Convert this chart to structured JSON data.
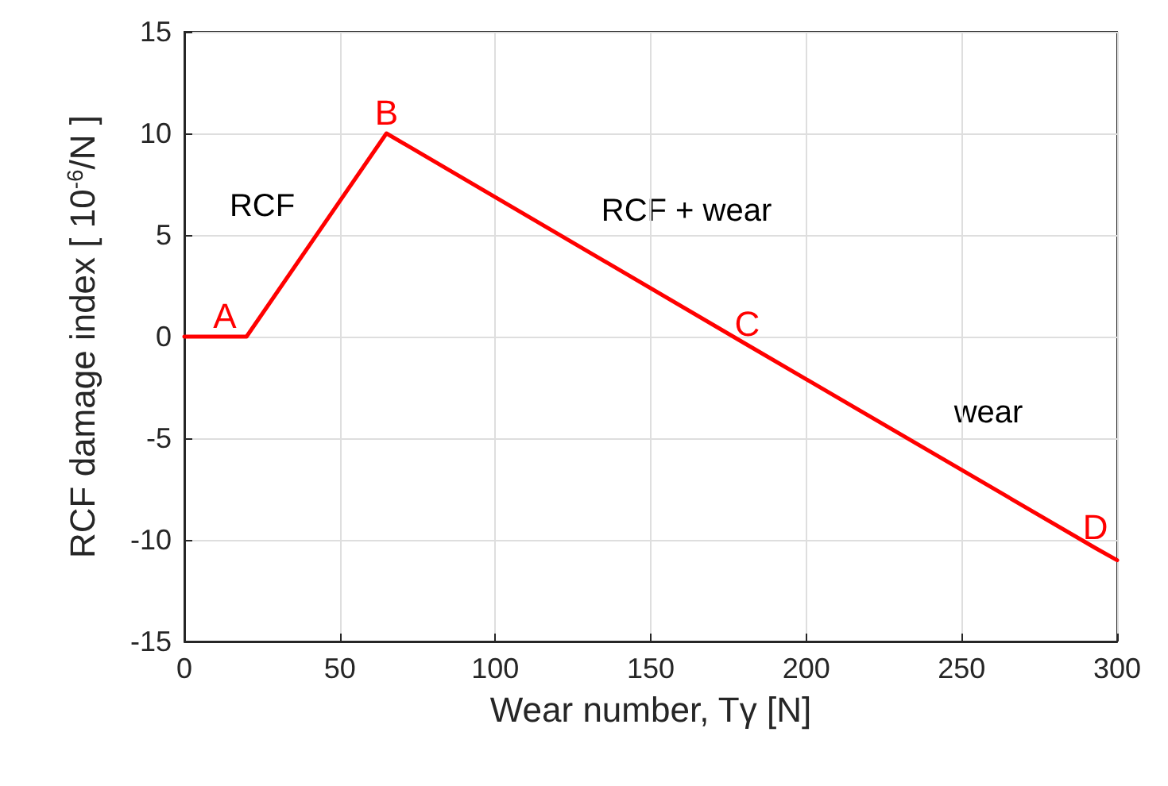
{
  "chart_data": {
    "type": "line",
    "xlabel": "Wear number, Tγ [N]",
    "ylabel": "RCF damage index [ 10$^{-6}$/N ]",
    "x": [
      0,
      13,
      20,
      65,
      181,
      293,
      300
    ],
    "series": [
      {
        "color": "#ff0000",
        "values": [
          0,
          0,
          0,
          10,
          -0.4,
          -10.4,
          -11
        ],
        "value_labels": [
          null,
          "A",
          null,
          "B",
          "C",
          "D",
          null
        ]
      }
    ],
    "xlim": [
      0,
      300
    ],
    "xticks": [
      0,
      50,
      100,
      150,
      200,
      250,
      300
    ],
    "ylim": [
      -15,
      15
    ],
    "yticks": [
      -15,
      -10,
      -5,
      0,
      5,
      10,
      15
    ],
    "grid": true,
    "marker": "none",
    "line_style": "solid",
    "annotations": [
      "RCF",
      "RCF + wear",
      "wear"
    ]
  }
}
